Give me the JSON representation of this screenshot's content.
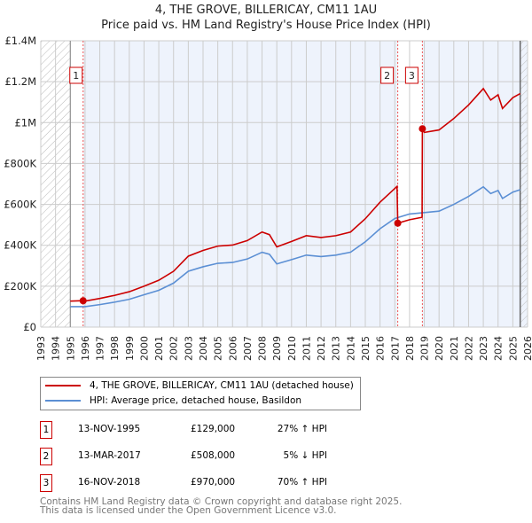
{
  "chart_data": {
    "type": "line",
    "title": "4, THE GROVE, BILLERICAY, CM11 1AU",
    "subtitle": "Price paid vs. HM Land Registry's House Price Index (HPI)",
    "xlim": [
      1993,
      2026
    ],
    "ylim": [
      0,
      1400000
    ],
    "y_ticks": [
      {
        "v": 0,
        "label": "£0"
      },
      {
        "v": 200000,
        "label": "£200K"
      },
      {
        "v": 400000,
        "label": "£400K"
      },
      {
        "v": 600000,
        "label": "£600K"
      },
      {
        "v": 800000,
        "label": "£800K"
      },
      {
        "v": 1000000,
        "label": "£1M"
      },
      {
        "v": 1200000,
        "label": "£1.2M"
      },
      {
        "v": 1400000,
        "label": "£1.4M"
      }
    ],
    "x_ticks": [
      "1993",
      "1994",
      "1995",
      "1996",
      "1997",
      "1998",
      "1999",
      "2000",
      "2001",
      "2002",
      "2003",
      "2004",
      "2005",
      "2006",
      "2007",
      "2008",
      "2009",
      "2010",
      "2011",
      "2012",
      "2013",
      "2014",
      "2015",
      "2016",
      "2017",
      "2018",
      "2019",
      "2020",
      "2021",
      "2022",
      "2023",
      "2024",
      "2025",
      "2026"
    ],
    "hatched_ranges": [
      [
        1993,
        1995
      ],
      [
        2025.5,
        2026
      ]
    ],
    "series": [
      {
        "name": "4, THE GROVE, BILLERICAY, CM11 1AU (detached house)",
        "color": "#cc0000",
        "x": [
          1995,
          1995.87,
          1996,
          1997,
          1998,
          1999,
          2000,
          2001,
          2002,
          2003,
          2004,
          2005,
          2006,
          2007,
          2008,
          2008.5,
          2009,
          2010,
          2011,
          2012,
          2013,
          2014,
          2015,
          2016,
          2017.15,
          2017.2,
          2018,
          2018.85,
          2018.87,
          2019,
          2020,
          2021,
          2022,
          2023,
          2023.5,
          2024,
          2024.3,
          2025,
          2025.5
        ],
        "y": [
          127000,
          129000,
          127000,
          140000,
          155000,
          173000,
          200000,
          229000,
          273000,
          347000,
          375000,
          396000,
          401000,
          423000,
          465000,
          452000,
          392000,
          419000,
          447000,
          438000,
          447000,
          465000,
          530000,
          611000,
          688000,
          508000,
          525000,
          537000,
          970000,
          952000,
          964000,
          1020000,
          1086000,
          1166000,
          1110000,
          1136000,
          1069000,
          1122000,
          1142000
        ]
      },
      {
        "name": "HPI: Average price, detached house, Basildon",
        "color": "#5b8fd4",
        "x": [
          1995,
          1996,
          1997,
          1998,
          1999,
          2000,
          2001,
          2002,
          2003,
          2004,
          2005,
          2006,
          2007,
          2008,
          2008.5,
          2009,
          2010,
          2011,
          2012,
          2013,
          2014,
          2015,
          2016,
          2017,
          2018,
          2019,
          2020,
          2021,
          2022,
          2023,
          2023.5,
          2024,
          2024.3,
          2025,
          2025.5
        ],
        "y": [
          100000,
          100000,
          110000,
          122000,
          136000,
          158000,
          180000,
          215000,
          273000,
          295000,
          312000,
          316000,
          333000,
          366000,
          356000,
          309000,
          330000,
          352000,
          345000,
          352000,
          366000,
          417000,
          481000,
          531000,
          553000,
          560000,
          567000,
          600000,
          639000,
          686000,
          653000,
          668000,
          629000,
          660000,
          672000
        ]
      }
    ],
    "sales": [
      {
        "n": "1",
        "x": 1995.87,
        "price": 129000,
        "date": "13-NOV-1995",
        "price_label": "£129,000",
        "hpi": "27% ↑ HPI"
      },
      {
        "n": "2",
        "x": 2017.2,
        "price": 508000,
        "date": "13-MAR-2017",
        "price_label": "£508,000",
        "hpi": "5% ↓ HPI"
      },
      {
        "n": "3",
        "x": 2018.87,
        "price": 970000,
        "date": "16-NOV-2018",
        "price_label": "£970,000",
        "hpi": "70% ↑ HPI"
      }
    ]
  },
  "footer": {
    "line1": "Contains HM Land Registry data © Crown copyright and database right 2025.",
    "line2": "This data is licensed under the Open Government Licence v3.0."
  }
}
